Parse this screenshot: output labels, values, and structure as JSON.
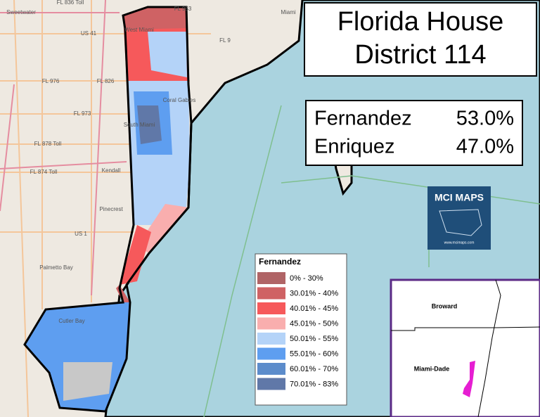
{
  "header": {
    "title_lines": [
      "Florida House",
      "District 114"
    ]
  },
  "results": [
    {
      "name": "Fernandez",
      "share": "53.0%"
    },
    {
      "name": "Enriquez",
      "share": "47.0%"
    }
  ],
  "legend": {
    "title": "Fernandez",
    "items": [
      {
        "label": "0% - 30%",
        "color": "#b06466"
      },
      {
        "label": "30.01% - 40%",
        "color": "#cf6264"
      },
      {
        "label": "40.01% - 45%",
        "color": "#f6595b"
      },
      {
        "label": "45.01% - 50%",
        "color": "#f9aeae"
      },
      {
        "label": "50.01% - 55%",
        "color": "#b4d3f8"
      },
      {
        "label": "55.01% - 60%",
        "color": "#5e9ef0"
      },
      {
        "label": "60.01% - 70%",
        "color": "#5c8ccb"
      },
      {
        "label": "70.01% - 83%",
        "color": "#6078a8"
      }
    ]
  },
  "map_labels": [
    "Sweetwater",
    "US 41",
    "FL 976",
    "FL 826",
    "FL 973",
    "FL 878 Toll",
    "FL 874 Toll",
    "Kendall",
    "Pinecrest",
    "US 1",
    "Palmetto Bay",
    "Cutler Bay",
    "West Miami",
    "Coral Gables",
    "South Miami",
    "FL 9",
    "Miami",
    "FL 836 Toll",
    "FL 953"
  ],
  "logo": {
    "title": "MCI MAPS",
    "url": "www.mcimaps.com"
  },
  "inset": {
    "labels": [
      "Broward",
      "Miami-Dade"
    ]
  }
}
